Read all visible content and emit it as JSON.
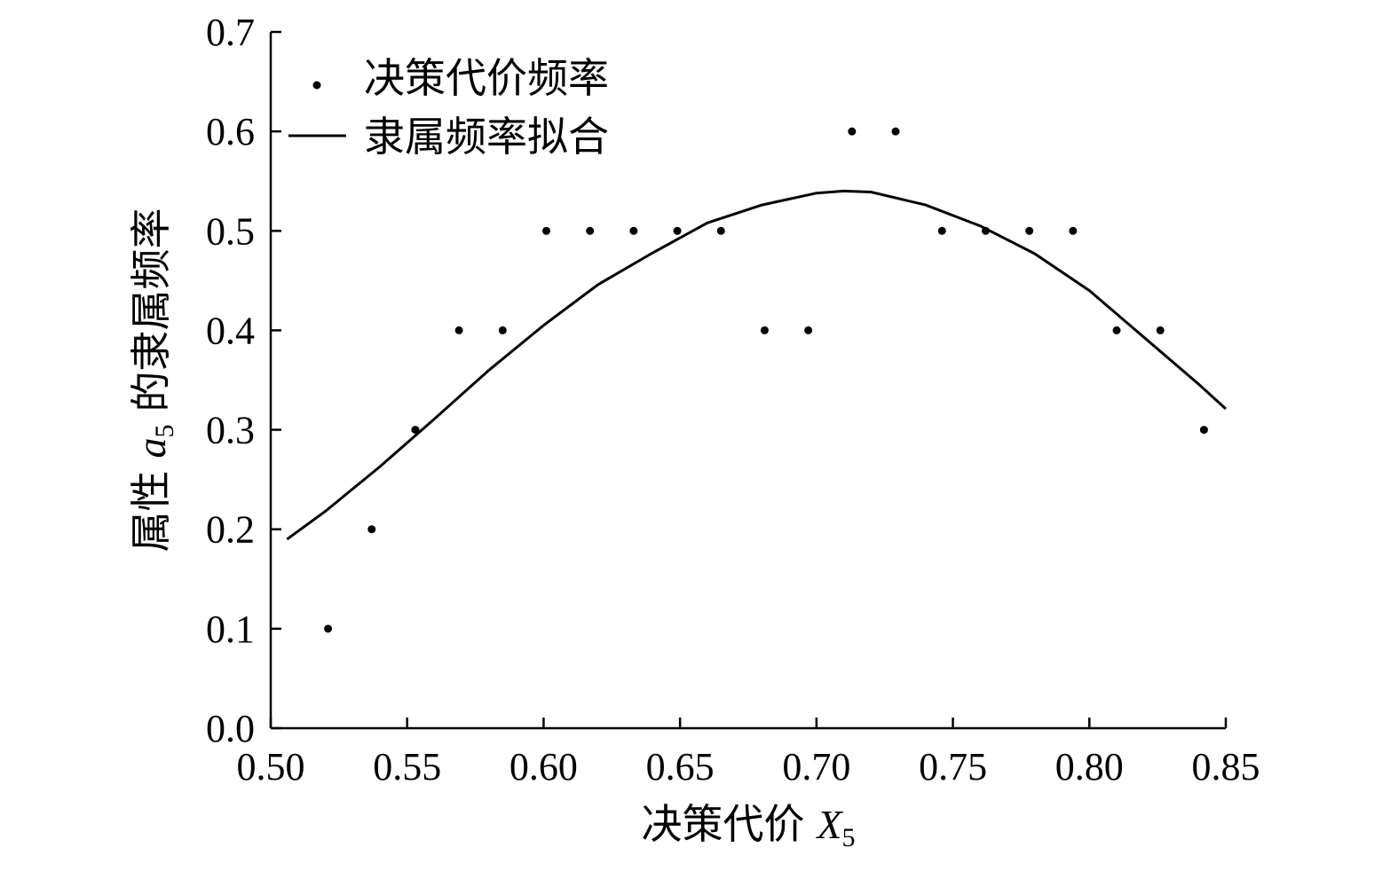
{
  "chart_data": {
    "type": "scatter",
    "xlabel": "决策代价",
    "xlabel_symbol": "X",
    "xlabel_subscript": "5",
    "ylabel_prefix": "属性",
    "ylabel_symbol": "a",
    "ylabel_subscript": "5",
    "ylabel_suffix": "的隶属频率",
    "xlim": [
      0.5,
      0.85
    ],
    "ylim": [
      0.0,
      0.7
    ],
    "xticks": [
      "0.50",
      "0.55",
      "0.60",
      "0.65",
      "0.70",
      "0.75",
      "0.80",
      "0.85"
    ],
    "yticks": [
      "0.0",
      "0.1",
      "0.2",
      "0.3",
      "0.4",
      "0.5",
      "0.6",
      "0.7"
    ],
    "legend_position": "top-left",
    "grid": false,
    "series": [
      {
        "name": "决策代价频率",
        "kind": "scatter",
        "marker": "dot",
        "x": [
          0.521,
          0.537,
          0.553,
          0.569,
          0.585,
          0.601,
          0.617,
          0.633,
          0.649,
          0.665,
          0.681,
          0.697,
          0.713,
          0.729,
          0.746,
          0.762,
          0.778,
          0.794,
          0.81,
          0.826,
          0.842
        ],
        "y": [
          0.1,
          0.2,
          0.3,
          0.4,
          0.4,
          0.5,
          0.5,
          0.5,
          0.5,
          0.5,
          0.4,
          0.4,
          0.6,
          0.6,
          0.5,
          0.5,
          0.5,
          0.5,
          0.4,
          0.4,
          0.3
        ]
      },
      {
        "name": "隶属频率拟合",
        "kind": "line",
        "x": [
          0.506,
          0.52,
          0.54,
          0.56,
          0.58,
          0.6,
          0.62,
          0.64,
          0.66,
          0.68,
          0.7,
          0.71,
          0.72,
          0.74,
          0.76,
          0.78,
          0.8,
          0.82,
          0.84,
          0.85
        ],
        "y": [
          0.19,
          0.218,
          0.263,
          0.311,
          0.36,
          0.405,
          0.446,
          0.478,
          0.508,
          0.526,
          0.538,
          0.54,
          0.539,
          0.526,
          0.505,
          0.477,
          0.44,
          0.393,
          0.346,
          0.321
        ]
      }
    ]
  }
}
